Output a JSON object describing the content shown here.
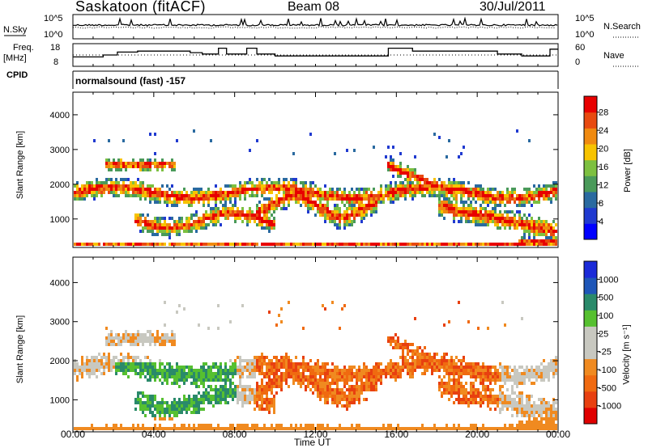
{
  "header": {
    "station": "Saskatoon (fitACF)",
    "beam": "Beam 08",
    "date": "30/Jul/2011"
  },
  "status_panels": {
    "left_nsky_label": "N.Sky",
    "left_nsky_ticks": [
      "10^5",
      "10^0"
    ],
    "right_nsearch_label": "N.Search",
    "right_nsearch_ticks": [
      "10^5",
      "10^0"
    ],
    "freq_label_top": "Freq.",
    "freq_label_bottom": "[MHz]",
    "freq_ticks": [
      "18",
      "8"
    ],
    "nave_label": "Nave",
    "nave_ticks": [
      "60",
      "0"
    ],
    "cpid_label": "CPID",
    "cpid_text": "normalsound (fast) -157"
  },
  "colors": {
    "power_scale": [
      "#0000ff",
      "#203ad0",
      "#2a6aa0",
      "#4a9a5a",
      "#7dc040",
      "#f7c300",
      "#f08a10",
      "#e84a10",
      "#e80000"
    ],
    "velocity_scale": [
      "#1a2ad8",
      "#1e56b8",
      "#2a8a6a",
      "#56c030",
      "#c8c8c0",
      "#c8c8c0",
      "#f08a20",
      "#f06a10",
      "#e84010",
      "#e00000"
    ]
  },
  "chart_data": [
    {
      "type": "heatmap",
      "name": "power",
      "ylabel": "Slant Range [km]",
      "yticks": [
        "1000",
        "2000",
        "3000",
        "4000"
      ],
      "ylim": [
        180,
        4650
      ],
      "colorbar_label": "Power [dB]",
      "colorbar_ticks": [
        "4",
        "8",
        "12",
        "16",
        "20",
        "24",
        "28"
      ],
      "colorbar_range": [
        0,
        31.5
      ],
      "xlim_hours": [
        0,
        24
      ]
    },
    {
      "type": "heatmap",
      "name": "velocity",
      "ylabel": "Slant Range [km]",
      "yticks": [
        "1000",
        "2000",
        "3000",
        "4000"
      ],
      "ylim": [
        180,
        4650
      ],
      "colorbar_label": "Velocity [m s⁻¹]",
      "colorbar_ticks": [
        "1000",
        "500",
        "100",
        "25",
        "-25",
        "-100",
        "-500",
        "-1000"
      ],
      "xlim_hours": [
        0,
        24
      ]
    }
  ],
  "xaxis": {
    "ticks": [
      "00:00",
      "04:00",
      "08:00",
      "12:00",
      "16:00",
      "20:00",
      "00:00"
    ],
    "label": "Time UT"
  }
}
